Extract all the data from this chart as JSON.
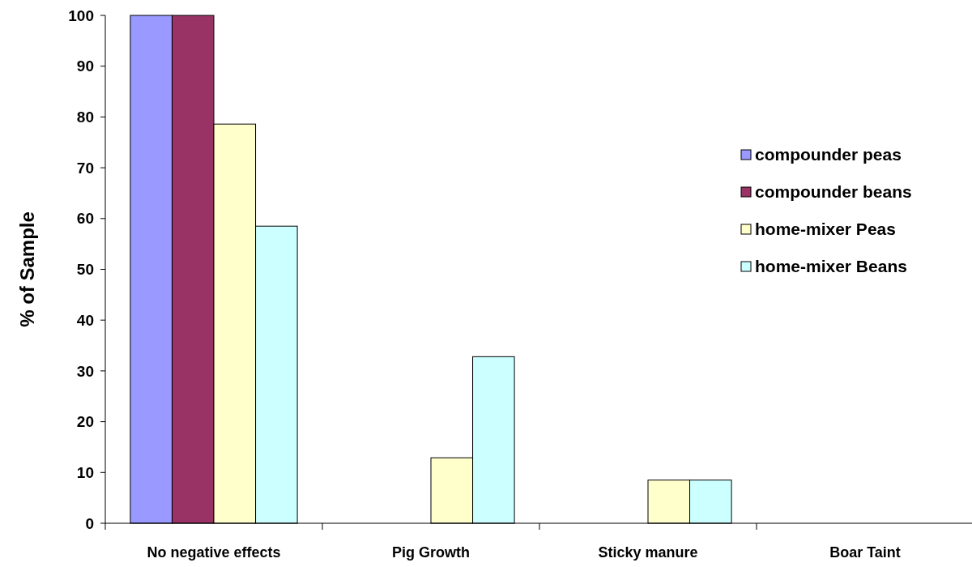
{
  "chart_data": {
    "type": "bar",
    "ylabel": "% of Sample",
    "categories": [
      "No negative effects",
      "Pig Growth",
      "Sticky manure",
      "Boar Taint"
    ],
    "series": [
      {
        "name": "compounder peas",
        "color": "#9999ff",
        "values": [
          100,
          0,
          0,
          0
        ]
      },
      {
        "name": "compounder beans",
        "color": "#993366",
        "values": [
          100,
          0,
          0,
          0
        ]
      },
      {
        "name": "home-mixer Peas",
        "color": "#ffffcc",
        "values": [
          78.6,
          12.9,
          8.5,
          0
        ]
      },
      {
        "name": "home-mixer Beans",
        "color": "#ccffff",
        "values": [
          58.5,
          32.8,
          8.5,
          0
        ]
      }
    ],
    "ylim": [
      0,
      100
    ],
    "yticks": [
      0,
      10,
      20,
      30,
      40,
      50,
      60,
      70,
      80,
      90,
      100
    ],
    "legend": "right",
    "grid": false
  }
}
